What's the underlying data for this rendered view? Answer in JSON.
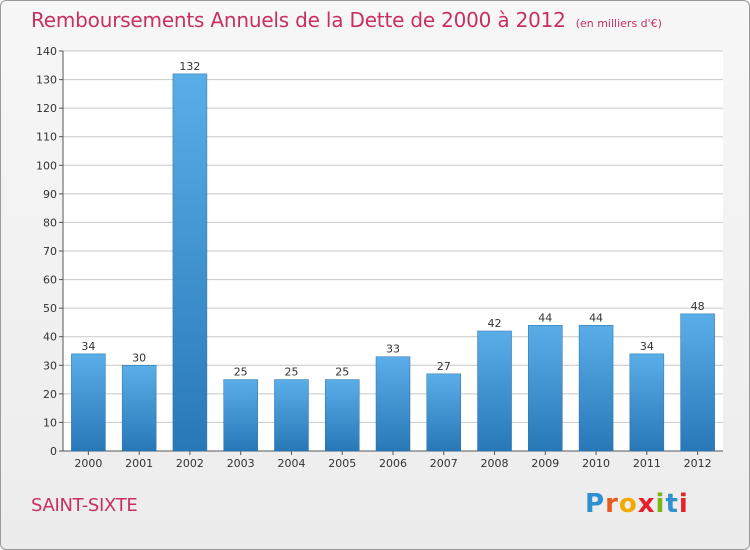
{
  "title": "Remboursements Annuels de la Dette de 2000 à 2012",
  "subtitle": "(en milliers d'€)",
  "commune": "SAINT-SIXTE",
  "logo": {
    "text": "Proxiti",
    "letter_colors": [
      "#2e8fd1",
      "#e85a1b",
      "#f2a900",
      "#e7212b",
      "#7cb518",
      "#2e8fd1",
      "#e7212b"
    ]
  },
  "colors": {
    "bar_top": "#5aaee8",
    "bar_bottom": "#2878b8",
    "accent": "#c8305f",
    "grid": "#c8c8c8"
  },
  "chart_data": {
    "type": "bar",
    "categories": [
      "2000",
      "2001",
      "2002",
      "2003",
      "2004",
      "2005",
      "2006",
      "2007",
      "2008",
      "2009",
      "2010",
      "2011",
      "2012"
    ],
    "values": [
      34,
      30,
      132,
      25,
      25,
      25,
      33,
      27,
      42,
      44,
      44,
      34,
      48
    ],
    "yticks": [
      0,
      10,
      20,
      30,
      40,
      50,
      60,
      70,
      80,
      90,
      100,
      110,
      120,
      130,
      140
    ],
    "ylim": [
      0,
      140
    ],
    "grid": true,
    "data_labels": true
  }
}
